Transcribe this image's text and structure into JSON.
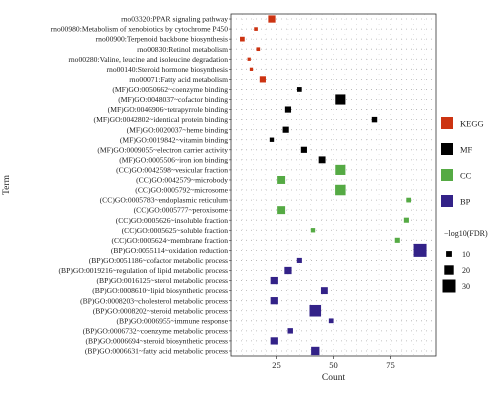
{
  "chart_data": {
    "type": "scatter",
    "xlabel": "Count",
    "ylabel": "Term",
    "xlim": [
      5,
      95
    ],
    "xticks": [
      25,
      50,
      75
    ],
    "grid": true,
    "legend_placement": "right",
    "categories": [
      "KEGG",
      "MF",
      "CC",
      "BP"
    ],
    "category_legend": [
      {
        "name": "KEGG",
        "color": "#cc3311"
      },
      {
        "name": "MF",
        "color": "#000000"
      },
      {
        "name": "CC",
        "color": "#55aa44"
      },
      {
        "name": "BP",
        "color": "#332288"
      }
    ],
    "size_legend": {
      "title": "−log10(FDR)",
      "values": [
        "10",
        "20",
        "30"
      ]
    },
    "points": [
      {
        "term": "rno03320:PPAR signaling pathway",
        "category": "KEGG",
        "count": 23,
        "neglog10fdr": 14
      },
      {
        "term": "rno00980:Metabolism of xenobiotics by cytochrome P450",
        "category": "KEGG",
        "count": 16,
        "neglog10fdr": 4
      },
      {
        "term": "rno00900:Terpenoid backbone biosynthesis",
        "category": "KEGG",
        "count": 10,
        "neglog10fdr": 7
      },
      {
        "term": "rno00830:Retinol metabolism",
        "category": "KEGG",
        "count": 17,
        "neglog10fdr": 4
      },
      {
        "term": "rno00280:Valine, leucine and isoleucine degradation",
        "category": "KEGG",
        "count": 13,
        "neglog10fdr": 3
      },
      {
        "term": "rno00140:Steroid hormone biosynthesis",
        "category": "KEGG",
        "count": 14,
        "neglog10fdr": 3
      },
      {
        "term": "rno00071:Fatty acid metabolism",
        "category": "KEGG",
        "count": 19,
        "neglog10fdr": 11
      },
      {
        "term": "(MF)GO:0050662~coenzyme binding",
        "category": "MF",
        "count": 35,
        "neglog10fdr": 7
      },
      {
        "term": "(MF)GO:0048037~cofactor binding",
        "category": "MF",
        "count": 53,
        "neglog10fdr": 22
      },
      {
        "term": "(MF)GO:0046906~tetrapyrrole binding",
        "category": "MF",
        "count": 30,
        "neglog10fdr": 11
      },
      {
        "term": "(MF)GO:0042802~identical protein binding",
        "category": "MF",
        "count": 68,
        "neglog10fdr": 9
      },
      {
        "term": "(MF)GO:0020037~heme binding",
        "category": "MF",
        "count": 29,
        "neglog10fdr": 11
      },
      {
        "term": "(MF)GO:0019842~vitamin binding",
        "category": "MF",
        "count": 23,
        "neglog10fdr": 6
      },
      {
        "term": "(MF)GO:0009055~electron carrier activity",
        "category": "MF",
        "count": 37,
        "neglog10fdr": 11
      },
      {
        "term": "(MF)GO:0005506~iron ion binding",
        "category": "MF",
        "count": 45,
        "neglog10fdr": 13
      },
      {
        "term": "(CC)GO:0042598~vesicular fraction",
        "category": "CC",
        "count": 53,
        "neglog10fdr": 22
      },
      {
        "term": "(CC)GO:0042579~microbody",
        "category": "CC",
        "count": 27,
        "neglog10fdr": 16
      },
      {
        "term": "(CC)GO:0005792~microsome",
        "category": "CC",
        "count": 53,
        "neglog10fdr": 23
      },
      {
        "term": "(CC)GO:0005783~endoplasmic reticulum",
        "category": "CC",
        "count": 83,
        "neglog10fdr": 7
      },
      {
        "term": "(CC)GO:0005777~peroxisome",
        "category": "CC",
        "count": 27,
        "neglog10fdr": 16
      },
      {
        "term": "(CC)GO:0005626~insoluble fraction",
        "category": "CC",
        "count": 82,
        "neglog10fdr": 8
      },
      {
        "term": "(CC)GO:0005625~soluble fraction",
        "category": "CC",
        "count": 41,
        "neglog10fdr": 6
      },
      {
        "term": "(CC)GO:0005624~membrane fraction",
        "category": "CC",
        "count": 78,
        "neglog10fdr": 8
      },
      {
        "term": "(BP)GO:0055114~oxidation reduction",
        "category": "BP",
        "count": 88,
        "neglog10fdr": 30
      },
      {
        "term": "(BP)GO:0051186~cofactor metabolic process",
        "category": "BP",
        "count": 35,
        "neglog10fdr": 8
      },
      {
        "term": "(BP)GO:0019216~regulation of lipid metabolic process",
        "category": "BP",
        "count": 30,
        "neglog10fdr": 14
      },
      {
        "term": "(BP)GO:0016125~sterol metabolic process",
        "category": "BP",
        "count": 24,
        "neglog10fdr": 14
      },
      {
        "term": "(BP)GO:0008610~lipid biosynthetic process",
        "category": "BP",
        "count": 46,
        "neglog10fdr": 13
      },
      {
        "term": "(BP)GO:0008203~cholesterol metabolic process",
        "category": "BP",
        "count": 24,
        "neglog10fdr": 14
      },
      {
        "term": "(BP)GO:0008202~steroid metabolic process",
        "category": "BP",
        "count": 42,
        "neglog10fdr": 26
      },
      {
        "term": "(BP)GO:0006955~immune response",
        "category": "BP",
        "count": 49,
        "neglog10fdr": 7
      },
      {
        "term": "(BP)GO:0006732~coenzyme metabolic process",
        "category": "BP",
        "count": 31,
        "neglog10fdr": 9
      },
      {
        "term": "(BP)GO:0006694~steroid biosynthetic process",
        "category": "BP",
        "count": 24,
        "neglog10fdr": 14
      },
      {
        "term": "(BP)GO:0006631~fatty acid metabolic process",
        "category": "BP",
        "count": 42,
        "neglog10fdr": 17
      }
    ]
  }
}
